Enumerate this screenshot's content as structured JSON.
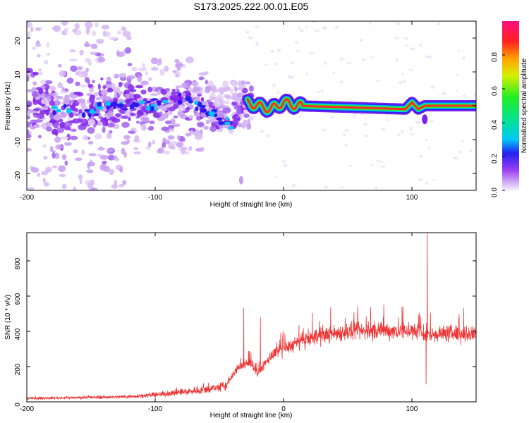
{
  "title": "S173.2025.222.00.01.E05",
  "chart_data": [
    {
      "type": "heatmap",
      "name": "spectrogram",
      "xlabel": "Height of straight line (km)",
      "ylabel": "Frequency (Hz)",
      "xlim": [
        -200,
        150
      ],
      "ylim": [
        -25,
        25
      ],
      "xticks": [
        -200,
        -100,
        0,
        100
      ],
      "yticks": [
        -20,
        -10,
        0,
        10,
        20
      ],
      "colorbar": {
        "label": "Normalized spectral amplitude",
        "range": [
          0,
          1
        ],
        "ticks": [
          0.0,
          0.2,
          0.4,
          0.6,
          0.8
        ],
        "tick_labels": [
          "0.0",
          "0.2",
          "0.4",
          "0.6",
          "0.8"
        ]
      },
      "ridge": [
        {
          "x": -180,
          "y": -2
        },
        {
          "x": -150,
          "y": -1
        },
        {
          "x": -120,
          "y": 1
        },
        {
          "x": -100,
          "y": 0
        },
        {
          "x": -80,
          "y": 2
        },
        {
          "x": -65,
          "y": 0
        },
        {
          "x": -50,
          "y": -4
        },
        {
          "x": -40,
          "y": -6
        },
        {
          "x": -30,
          "y": 1
        },
        {
          "x": -20,
          "y": 0
        },
        {
          "x": -10,
          "y": -1
        },
        {
          "x": 0,
          "y": 1
        },
        {
          "x": 10,
          "y": 0
        },
        {
          "x": 95,
          "y": -1
        },
        {
          "x": 100,
          "y": 1
        },
        {
          "x": 105,
          "y": -1
        },
        {
          "x": 110,
          "y": 0
        },
        {
          "x": 150,
          "y": 0
        }
      ]
    },
    {
      "type": "line",
      "name": "snr",
      "xlabel": "Height of straight line (km)",
      "ylabel": "SNR (10 * v/v)",
      "xlim": [
        -200,
        150
      ],
      "ylim": [
        0,
        960
      ],
      "xticks": [
        -200,
        -100,
        0,
        100
      ],
      "yticks": [
        0,
        200,
        400,
        600,
        800
      ],
      "color": "#ee3333",
      "envelope": [
        {
          "x": -200,
          "y": 20
        },
        {
          "x": -150,
          "y": 25
        },
        {
          "x": -120,
          "y": 30
        },
        {
          "x": -100,
          "y": 40
        },
        {
          "x": -80,
          "y": 55
        },
        {
          "x": -60,
          "y": 70
        },
        {
          "x": -45,
          "y": 90
        },
        {
          "x": -35,
          "y": 200
        },
        {
          "x": -25,
          "y": 220
        },
        {
          "x": -20,
          "y": 160
        },
        {
          "x": -10,
          "y": 260
        },
        {
          "x": 0,
          "y": 300
        },
        {
          "x": 10,
          "y": 330
        },
        {
          "x": 20,
          "y": 360
        },
        {
          "x": 40,
          "y": 390
        },
        {
          "x": 60,
          "y": 400
        },
        {
          "x": 80,
          "y": 405
        },
        {
          "x": 100,
          "y": 400
        },
        {
          "x": 110,
          "y": 380
        },
        {
          "x": 130,
          "y": 390
        },
        {
          "x": 150,
          "y": 380
        }
      ],
      "spikes": [
        {
          "x": -31,
          "y": 530
        },
        {
          "x": -18,
          "y": 480
        },
        {
          "x": 112,
          "y": 960
        },
        {
          "x": 111,
          "y": 100
        }
      ]
    }
  ]
}
